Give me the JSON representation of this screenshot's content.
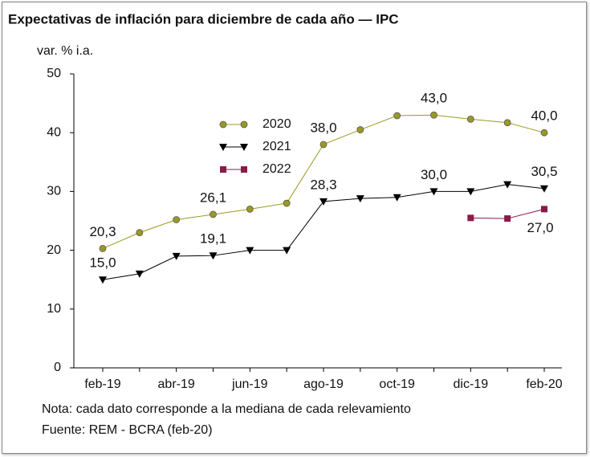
{
  "chart_data": {
    "type": "line",
    "title": "Expectativas de inflación para diciembre de cada año — IPC",
    "y_axis_label": "var. % i.a.",
    "categories": [
      "feb-19",
      null,
      "abr-19",
      null,
      "jun-19",
      null,
      "ago-19",
      null,
      "oct-19",
      null,
      "dic-19",
      null,
      "feb-20"
    ],
    "ylim": [
      0,
      50
    ],
    "yticks": [
      0,
      10,
      20,
      30,
      40,
      50
    ],
    "series": [
      {
        "name": "2020",
        "color": "#9a9a22",
        "marker": "circle",
        "values": [
          20.3,
          23.0,
          25.2,
          26.1,
          27.0,
          28.0,
          38.0,
          40.5,
          42.9,
          43.0,
          42.3,
          41.7,
          40.0
        ],
        "value_labels": [
          "20,3",
          null,
          null,
          "26,1",
          null,
          null,
          "38,0",
          null,
          null,
          "43,0",
          null,
          null,
          "40,0"
        ]
      },
      {
        "name": "2021",
        "color": "#000000",
        "marker": "triangle-down",
        "values": [
          15.0,
          16.0,
          19.0,
          19.1,
          20.0,
          20.0,
          28.3,
          28.8,
          29.0,
          30.0,
          30.0,
          31.2,
          30.5
        ],
        "value_labels": [
          "15,0",
          null,
          null,
          "19,1",
          null,
          null,
          "28,3",
          null,
          null,
          "30,0",
          null,
          null,
          "30,5"
        ]
      },
      {
        "name": "2022",
        "color": "#8b1a4a",
        "marker": "square",
        "values": [
          null,
          null,
          null,
          null,
          null,
          null,
          null,
          null,
          null,
          null,
          25.5,
          25.4,
          27.0
        ],
        "value_labels": [
          null,
          null,
          null,
          null,
          null,
          null,
          null,
          null,
          null,
          null,
          null,
          null,
          "27,0"
        ]
      }
    ],
    "notes": [
      "Nota: cada dato corresponde a la mediana de cada relevamiento",
      "Fuente: REM - BCRA (feb-20)"
    ]
  }
}
